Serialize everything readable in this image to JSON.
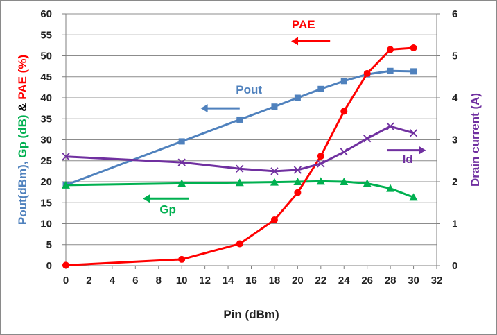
{
  "chart_data": {
    "type": "line",
    "x_axis": {
      "label": "Pin (dBm)",
      "range": [
        0,
        32
      ],
      "ticks": [
        0,
        2,
        4,
        6,
        8,
        10,
        12,
        14,
        16,
        18,
        20,
        22,
        24,
        26,
        28,
        30,
        32
      ]
    },
    "y_left": {
      "label_parts": [
        {
          "text": "Pout(dBm), ",
          "color": "#4f81bd"
        },
        {
          "text": "Gp (dB) ",
          "color": "#00b050"
        },
        {
          "text": "& ",
          "color": "#000000"
        },
        {
          "text": "PAE (%)",
          "color": "#ff0000"
        }
      ],
      "range": [
        0,
        60
      ],
      "ticks": [
        0,
        5,
        10,
        15,
        20,
        25,
        30,
        35,
        40,
        45,
        50,
        55,
        60
      ]
    },
    "y_right": {
      "label": "Drain current (A)",
      "label_color": "#7030a0",
      "range": [
        0,
        6
      ],
      "ticks": [
        0,
        1,
        2,
        3,
        4,
        5,
        6
      ]
    },
    "grid": "horizontal",
    "series": [
      {
        "key": "pout",
        "axis": "left",
        "marker": "square",
        "color": "#4f81bd",
        "x": [
          0,
          10,
          15,
          18,
          20,
          22,
          24,
          26,
          28,
          30
        ],
        "values": [
          19.2,
          29.6,
          34.8,
          37.9,
          40.0,
          42.1,
          44.0,
          45.6,
          46.4,
          46.3
        ]
      },
      {
        "key": "gp",
        "axis": "left",
        "marker": "triangle",
        "color": "#00b050",
        "x": [
          0,
          10,
          15,
          18,
          20,
          22,
          24,
          26,
          28,
          30
        ],
        "values": [
          19.2,
          19.6,
          19.8,
          19.9,
          20.0,
          20.1,
          20.0,
          19.6,
          18.4,
          16.3
        ]
      },
      {
        "key": "pae",
        "axis": "left",
        "marker": "circle",
        "color": "#ff0000",
        "x": [
          0,
          10,
          15,
          18,
          20,
          22,
          24,
          26,
          28,
          30
        ],
        "values": [
          0.1,
          1.5,
          5.2,
          10.9,
          17.4,
          26.1,
          36.8,
          45.8,
          51.5,
          51.9
        ]
      },
      {
        "key": "id",
        "axis": "right",
        "marker": "x",
        "color": "#7030a0",
        "x": [
          0,
          10,
          15,
          18,
          20,
          22,
          24,
          26,
          28,
          30
        ],
        "values": [
          2.6,
          2.46,
          2.31,
          2.25,
          2.28,
          2.43,
          2.71,
          3.03,
          3.32,
          3.16
        ]
      }
    ],
    "annotations": [
      {
        "text": "PAE",
        "color": "#ff0000",
        "arrow": "left"
      },
      {
        "text": "Pout",
        "color": "#4f81bd",
        "arrow": "left"
      },
      {
        "text": "Id",
        "color": "#7030a0",
        "arrow": "right"
      },
      {
        "text": "Gp",
        "color": "#00b050",
        "arrow": "left"
      }
    ]
  }
}
